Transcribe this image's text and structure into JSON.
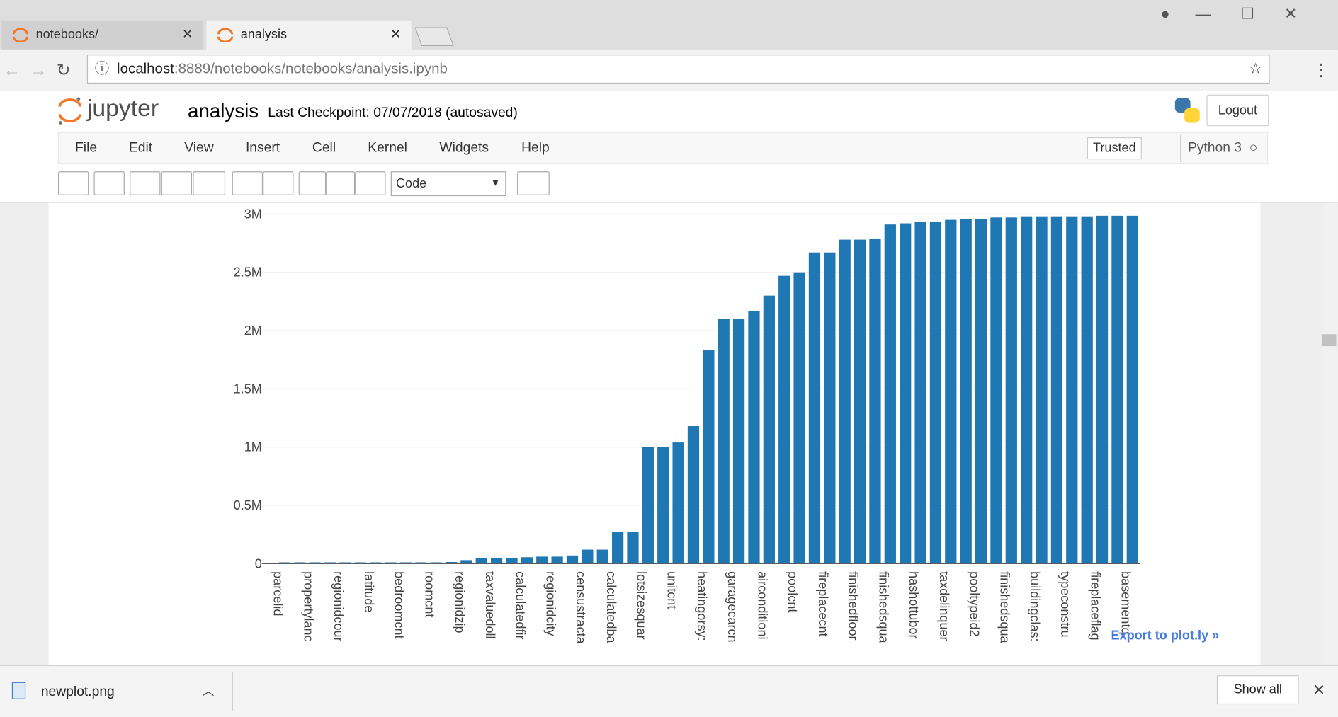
{
  "browser": {
    "tabs": [
      "notebooks/",
      "analysis"
    ],
    "url_host": "localhost",
    "url_path": ":8889/notebooks/notebooks/analysis.ipynb"
  },
  "jupyter": {
    "logo": "jupyter",
    "notebook_name": "analysis",
    "checkpoint": "Last Checkpoint: 07/07/2018 (autosaved)",
    "logout": "Logout",
    "menu": [
      "File",
      "Edit",
      "View",
      "Insert",
      "Cell",
      "Kernel",
      "Widgets",
      "Help"
    ],
    "trusted": "Trusted",
    "kernel": "Python 3",
    "cell_type": "Code"
  },
  "export_link": "Export to plot.ly »",
  "download_bar": {
    "file": "newplot.png",
    "show_all": "Show all"
  },
  "chart_data": {
    "type": "bar",
    "color": "#1f77b4",
    "grid": true,
    "categories": [
      "parcelid",
      null,
      "propertylanc",
      null,
      "regionidcour",
      null,
      "latitude",
      null,
      "bedroomcnt",
      null,
      "roomcnt",
      null,
      "regionidzip",
      null,
      "taxvaluedoll",
      null,
      "calculatedfir",
      null,
      "regionidcity",
      null,
      "censustracta",
      null,
      "calculatedba",
      null,
      "lotsizesquar",
      null,
      "unitcnt",
      null,
      "heatingorsy:",
      null,
      "garagecarcn",
      null,
      "airconditioni",
      null,
      "poolcnt",
      null,
      "fireplacecnt",
      null,
      "finishedfloor",
      null,
      "finishedsqua",
      null,
      "hashottubor",
      null,
      "taxdelinquer",
      null,
      "pooltypeid2",
      null,
      "finishedsqua",
      null,
      "buildingclas:",
      null,
      "typeconstru",
      null,
      "fireplaceflag",
      null,
      "basementq",
      null
    ],
    "values": [
      0,
      11000,
      11000,
      11000,
      11000,
      11000,
      11000,
      11000,
      11000,
      11000,
      11000,
      11000,
      14000,
      30000,
      45000,
      50000,
      50000,
      55000,
      60000,
      60000,
      70000,
      120000,
      120000,
      270000,
      270000,
      1000000,
      1000000,
      1040000,
      1180000,
      1830000,
      2100000,
      2100000,
      2170000,
      2300000,
      2470000,
      2500000,
      2670000,
      2670000,
      2780000,
      2780000,
      2790000,
      2910000,
      2920000,
      2930000,
      2930000,
      2950000,
      2960000,
      2960000,
      2970000,
      2970000,
      2980000,
      2980000,
      2980000,
      2980000,
      2980000,
      2985000,
      2985000,
      2985000
    ],
    "ylim": [
      0,
      3000000
    ],
    "yticks": [
      0,
      {
        "value": 500000,
        "label": "0.5M"
      },
      {
        "value": 1000000,
        "label": "1M"
      },
      {
        "value": 1500000,
        "label": "1.5M"
      },
      {
        "value": 2000000,
        "label": "2M"
      },
      {
        "value": 2500000,
        "label": "2.5M"
      },
      {
        "value": 3000000,
        "label": "3M"
      }
    ]
  }
}
